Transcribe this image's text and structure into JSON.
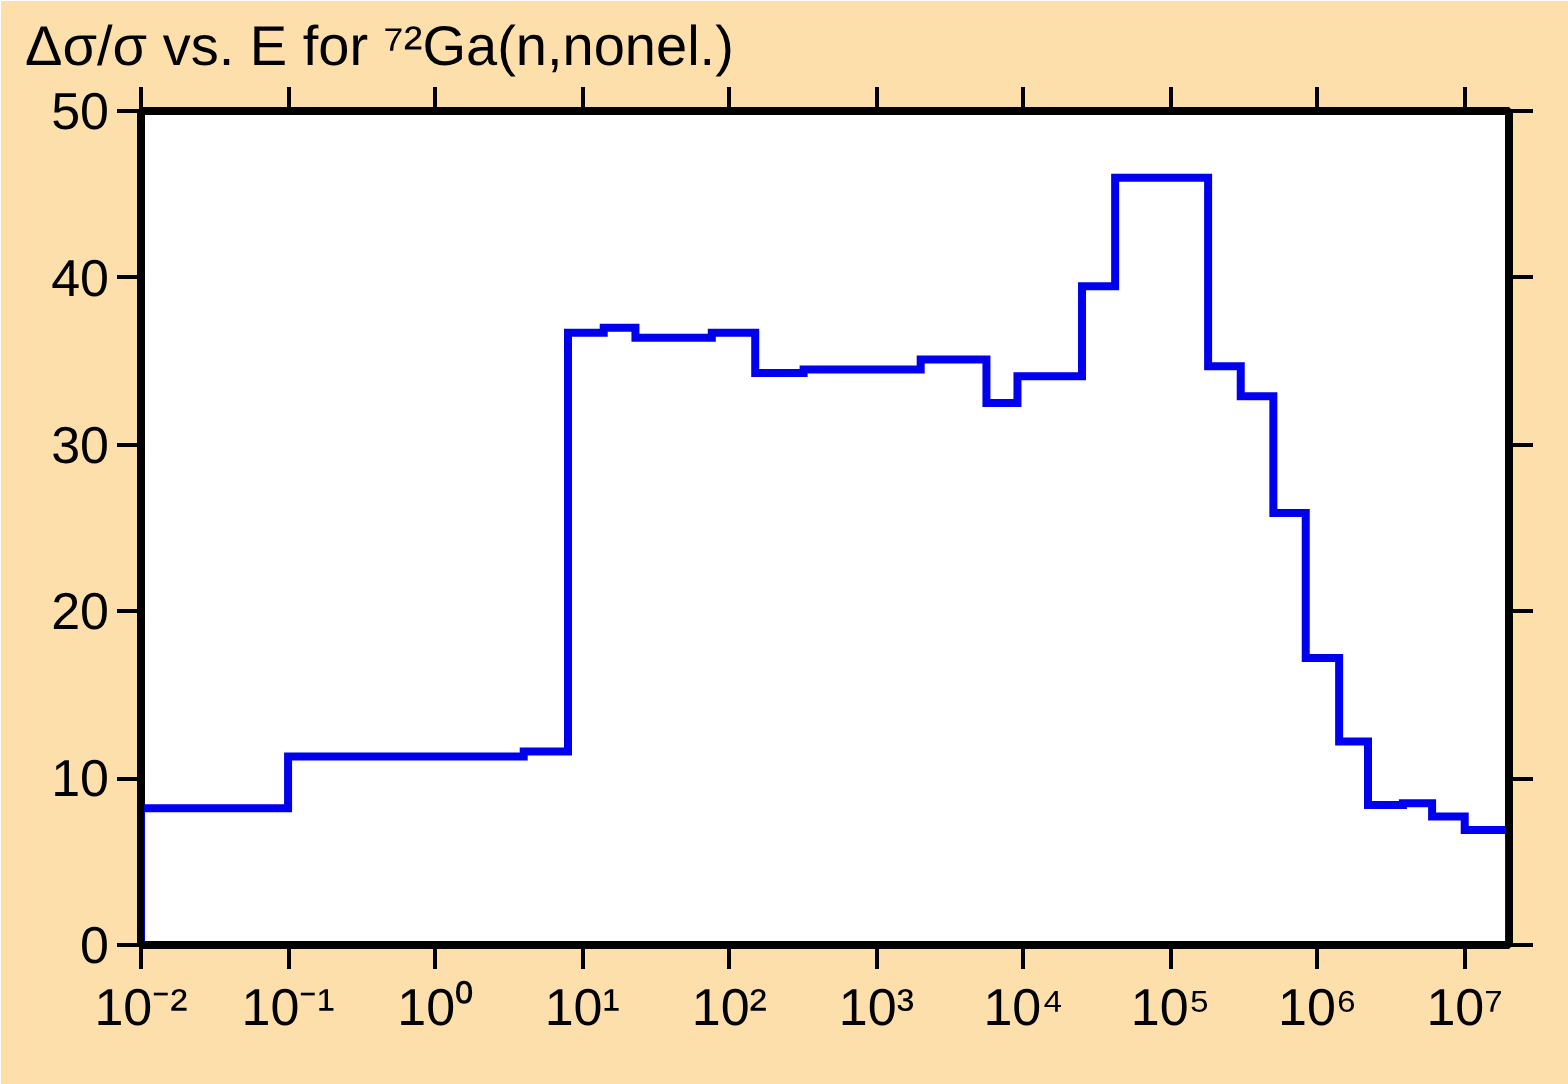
{
  "chart_data": {
    "type": "histogram",
    "title": "Δσ/σ vs. E for ⁷²Ga(n,nonel.)",
    "bins": [
      0.01,
      0.1,
      4,
      8,
      14,
      23,
      76,
      150,
      320,
      2000,
      5600,
      9100,
      25000,
      42000,
      180000,
      300000,
      500000,
      830000,
      1400000,
      2200000,
      3800000,
      6000000,
      10000000,
      20000000
    ],
    "values": [
      8.2,
      11.3,
      11.6,
      36.7,
      37.0,
      36.4,
      36.7,
      34.3,
      34.5,
      35.1,
      32.5,
      34.1,
      39.5,
      46.0,
      34.7,
      32.9,
      25.9,
      17.2,
      12.2,
      8.4,
      8.5,
      7.7,
      6.9
    ],
    "color": "#0000ee",
    "log": "x",
    "grid": false,
    "xlim": [
      0.01,
      20000000
    ],
    "ylim": [
      0,
      50
    ],
    "xticks": [
      {
        "value": 0.01,
        "label": "10⁻²"
      },
      {
        "value": 0.1,
        "label": "10⁻¹"
      },
      {
        "value": 1,
        "label": "10⁰"
      },
      {
        "value": 10,
        "label": "10¹"
      },
      {
        "value": 100,
        "label": "10²"
      },
      {
        "value": 1000,
        "label": "10³"
      },
      {
        "value": 10000,
        "label": "10⁴"
      },
      {
        "value": 100000,
        "label": "10⁵"
      },
      {
        "value": 1000000,
        "label": "10⁶"
      },
      {
        "value": 10000000,
        "label": "10⁷"
      }
    ],
    "yticks": [
      0,
      10,
      20,
      30,
      40,
      50
    ]
  }
}
